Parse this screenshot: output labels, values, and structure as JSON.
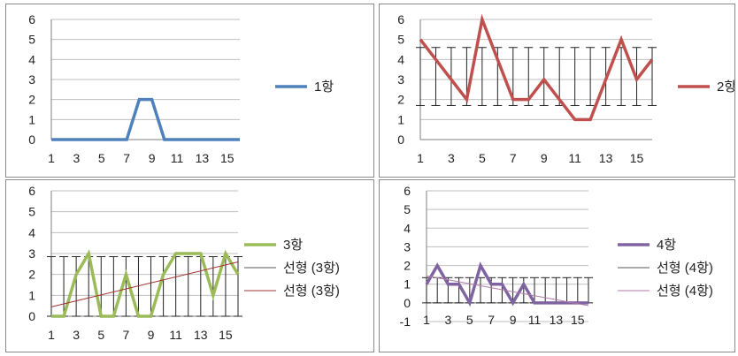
{
  "chart_data": [
    {
      "type": "line",
      "x_ticks": [
        "1",
        "3",
        "5",
        "7",
        "9",
        "11",
        "13",
        "15"
      ],
      "ylim": [
        0,
        6
      ],
      "y_ticks": [
        "0",
        "1",
        "2",
        "3",
        "4",
        "5",
        "6"
      ],
      "grid": true,
      "legend_position": "right",
      "series": [
        {
          "name": "1항",
          "color": "#4f81bd",
          "x": [
            1,
            2,
            3,
            4,
            5,
            6,
            7,
            8,
            9,
            10,
            11,
            12,
            13,
            14,
            15,
            16
          ],
          "y": [
            0,
            0,
            0,
            0,
            0,
            0,
            0,
            2,
            2,
            0,
            0,
            0,
            0,
            0,
            0,
            0
          ]
        }
      ]
    },
    {
      "type": "line",
      "x_ticks": [
        "1",
        "3",
        "5",
        "7",
        "9",
        "11",
        "13",
        "15"
      ],
      "ylim": [
        0,
        6
      ],
      "y_ticks": [
        "0",
        "1",
        "2",
        "3",
        "4",
        "5",
        "6"
      ],
      "grid": true,
      "legend_position": "right",
      "error_bars": {
        "low": 1.7,
        "high": 4.6
      },
      "series": [
        {
          "name": "2항",
          "color": "#c0504d",
          "x": [
            1,
            2,
            3,
            4,
            5,
            6,
            7,
            8,
            9,
            10,
            11,
            12,
            13,
            14,
            15,
            16
          ],
          "y": [
            5,
            4,
            3,
            2,
            6,
            4,
            2,
            2,
            3,
            2,
            1,
            1,
            3,
            5,
            3,
            4
          ]
        }
      ]
    },
    {
      "type": "line",
      "x_ticks": [
        "1",
        "3",
        "5",
        "7",
        "9",
        "11",
        "13",
        "15"
      ],
      "ylim": [
        0,
        6
      ],
      "y_ticks": [
        "0",
        "1",
        "2",
        "3",
        "4",
        "5",
        "6"
      ],
      "grid": true,
      "legend_position": "right",
      "error_bars": {
        "low": 0,
        "high": 2.85
      },
      "series": [
        {
          "name": "3항",
          "color": "#9bbb59",
          "x": [
            1,
            2,
            3,
            4,
            5,
            6,
            7,
            8,
            9,
            10,
            11,
            12,
            13,
            14,
            15,
            16
          ],
          "y": [
            0,
            0,
            2,
            3,
            0,
            0,
            2,
            0,
            0,
            2,
            3,
            3,
            3,
            1,
            3,
            2
          ]
        },
        {
          "name": "선형 (3항)",
          "color": "#555555",
          "trendline": true,
          "legend_only": true
        },
        {
          "name": "선형 (3항)",
          "color": "#a0302c",
          "trendline": true,
          "from": [
            1,
            0.45
          ],
          "to": [
            16,
            2.6
          ]
        }
      ]
    },
    {
      "type": "line",
      "x_ticks": [
        "1",
        "3",
        "5",
        "7",
        "9",
        "11",
        "13",
        "15"
      ],
      "ylim": [
        -1,
        6
      ],
      "y_ticks": [
        "-1",
        "0",
        "1",
        "2",
        "3",
        "4",
        "5",
        "6"
      ],
      "grid": true,
      "legend_position": "right",
      "error_bars": {
        "low": 0,
        "high": 1.35
      },
      "series": [
        {
          "name": "4항",
          "color": "#8064a2",
          "x": [
            1,
            2,
            3,
            4,
            5,
            6,
            7,
            8,
            9,
            10,
            11,
            12,
            13,
            14,
            15,
            16
          ],
          "y": [
            1,
            2,
            1,
            1,
            0,
            2,
            1,
            1,
            0,
            1,
            0,
            0,
            0,
            0,
            0,
            0
          ]
        },
        {
          "name": "선형 (4항)",
          "color": "#555555",
          "trendline": true,
          "legend_only": true
        },
        {
          "name": "선형 (4항)",
          "color": "#b07aa8",
          "trendline": true,
          "from": [
            1,
            1.45
          ],
          "to": [
            16,
            -0.15
          ]
        }
      ]
    }
  ]
}
